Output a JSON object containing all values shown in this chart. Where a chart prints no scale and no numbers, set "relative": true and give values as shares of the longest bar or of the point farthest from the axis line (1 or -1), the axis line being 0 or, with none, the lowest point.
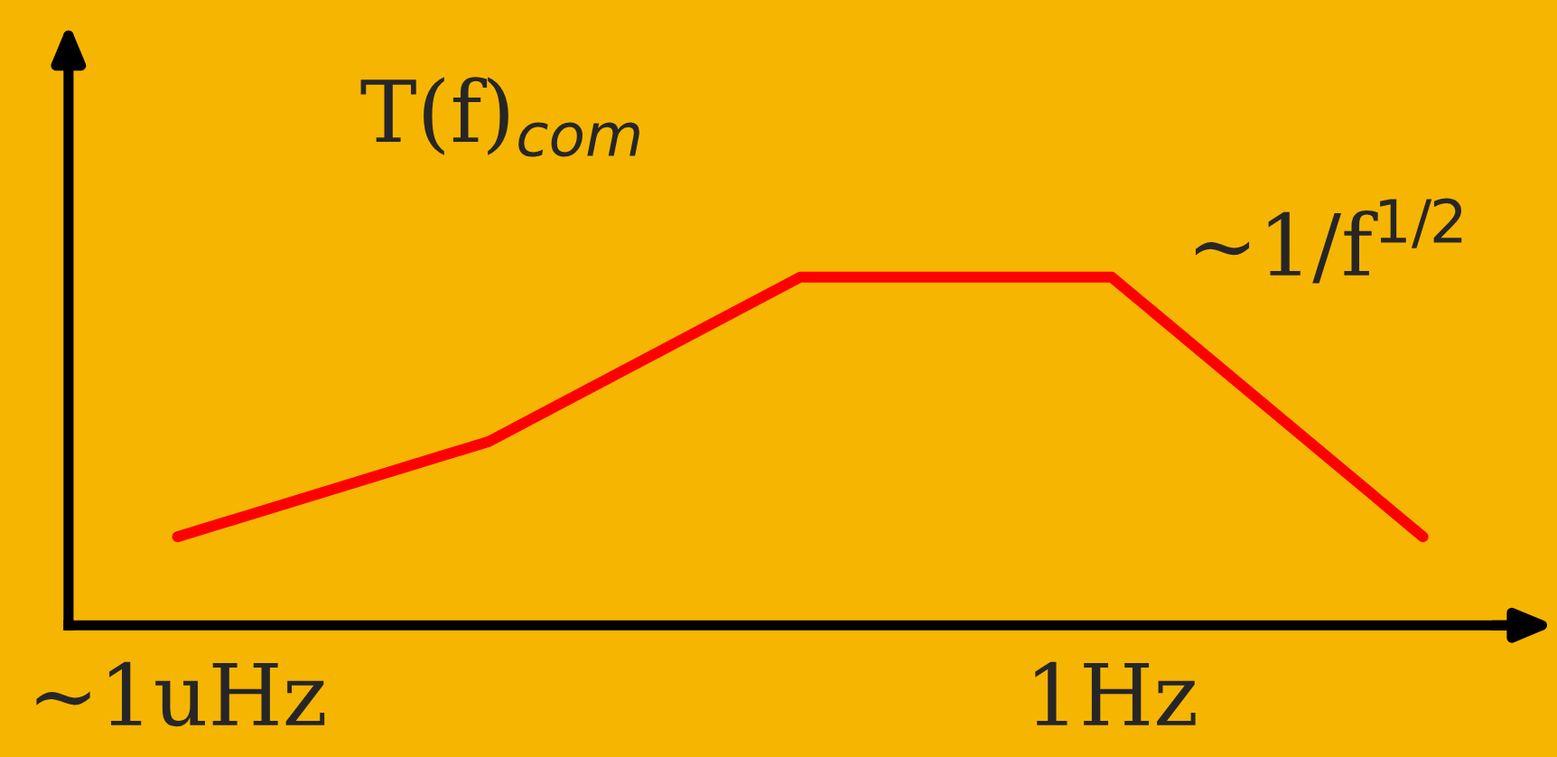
{
  "chart_data": {
    "type": "line",
    "title": "T(f)$_{com}$",
    "relative": true,
    "categories": [
      "~1uHz",
      null,
      null,
      "1Hz",
      null
    ],
    "series": [
      {
        "color": "#ff0000",
        "values": [
          0.254,
          0.528,
          1,
          1,
          0.254
        ]
      }
    ],
    "annotations": [
      "~1/f$^{1/2}$"
    ],
    "grid": false,
    "legend": false,
    "marker": "none",
    "line_style": "solid"
  }
}
